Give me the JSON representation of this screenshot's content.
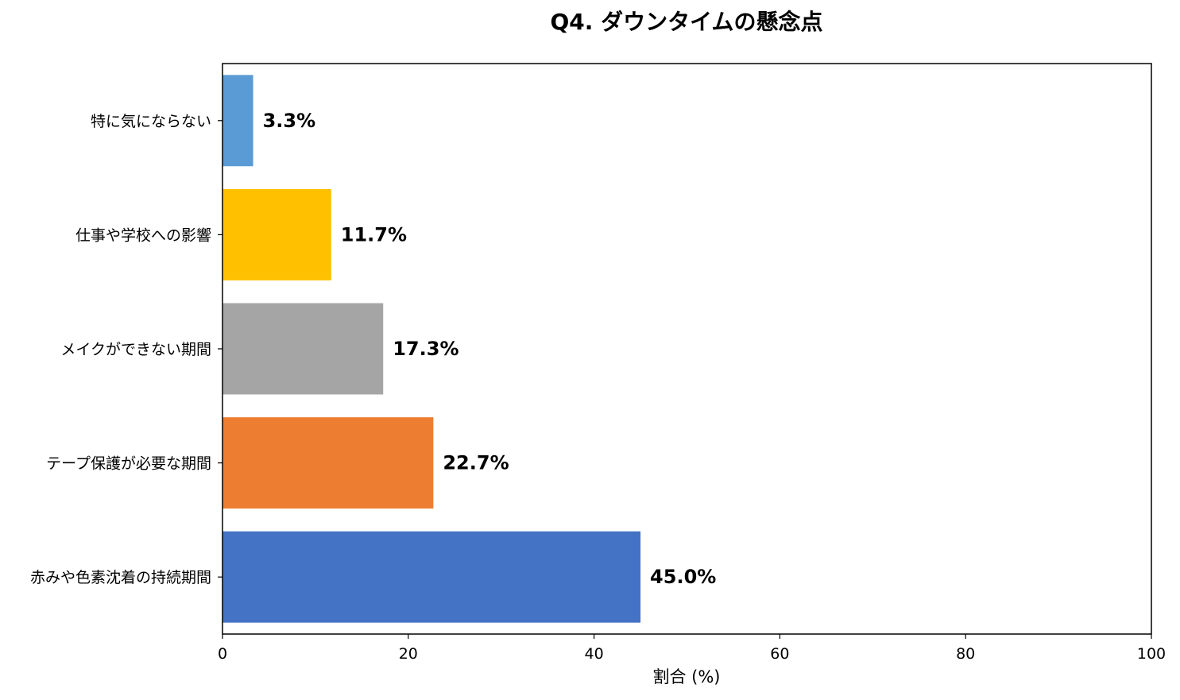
{
  "chart_data": {
    "type": "bar",
    "orientation": "horizontal",
    "title": "Q4. ダウンタイムの懸念点",
    "xlabel": "割合 (%)",
    "ylabel": "",
    "xlim": [
      0,
      100
    ],
    "x_ticks": [
      "0",
      "20",
      "40",
      "60",
      "80",
      "100"
    ],
    "grid": false,
    "categories": [
      "特に気にならない",
      "仕事や学校への影響",
      "メイクができない期間",
      "テープ保護が必要な期間",
      "赤みや色素沈着の持続期間"
    ],
    "values": [
      3.3,
      11.7,
      17.3,
      22.7,
      45.0
    ],
    "value_labels": [
      "3.3%",
      "11.7%",
      "17.3%",
      "22.7%",
      "45.0%"
    ],
    "colors": [
      "#5b9bd5",
      "#ffc000",
      "#a5a5a5",
      "#ed7d31",
      "#4472c4"
    ]
  }
}
